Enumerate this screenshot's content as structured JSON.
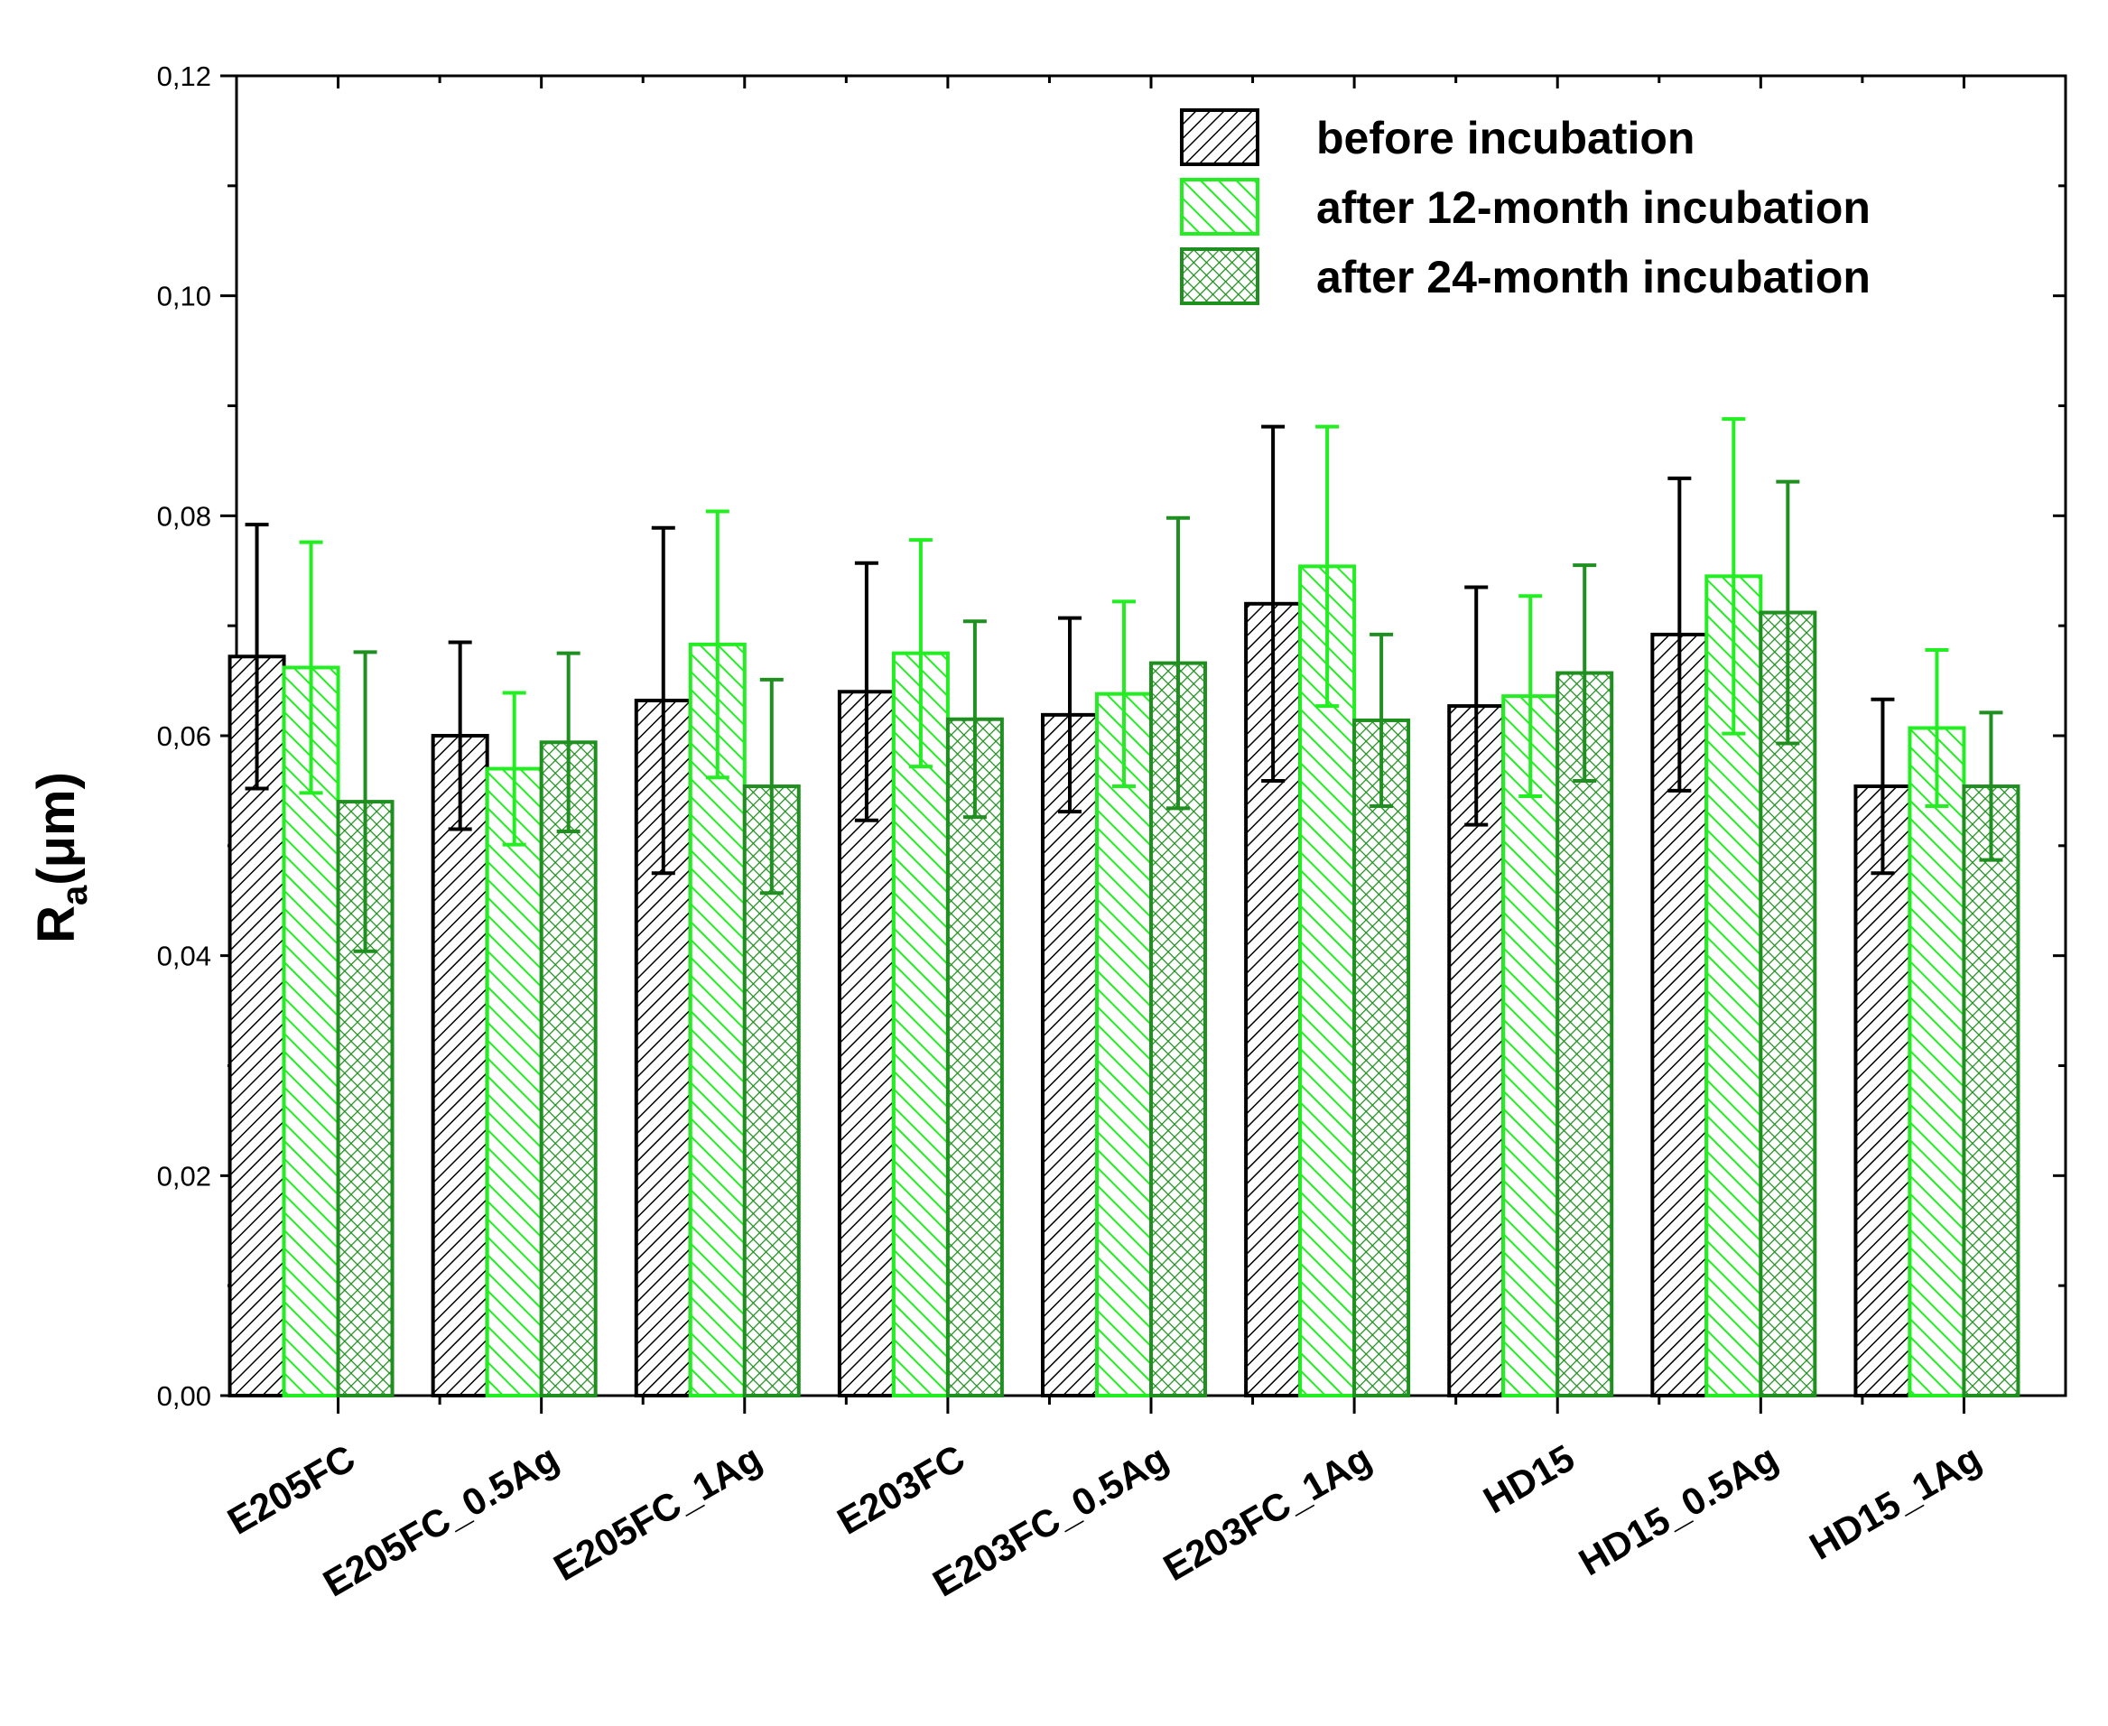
{
  "chart_data": {
    "type": "bar",
    "title": "",
    "xlabel": "",
    "ylabel": "Ra(μm)",
    "ylabel_parts": {
      "main": "R",
      "sub": "a",
      "unit": "(μm)"
    },
    "ylim": [
      0,
      0.12
    ],
    "yticks": [
      "0,00",
      "0,02",
      "0,04",
      "0,06",
      "0,08",
      "0,10",
      "0,12"
    ],
    "ytick_values": [
      0,
      0.02,
      0.04,
      0.06,
      0.08,
      0.1,
      0.12
    ],
    "categories": [
      "E205FC",
      "E205FC_0.5Ag",
      "E205FC_1Ag",
      "E203FC",
      "E203FC_0.5Ag",
      "E203FC_1Ag",
      "HD15",
      "HD15_0.5Ag",
      "HD15_1Ag"
    ],
    "legend_position": "top-right",
    "series": [
      {
        "name": "before incubation",
        "color": "#000000",
        "pattern": "diag-dense",
        "values": [
          0.0672,
          0.06,
          0.0632,
          0.064,
          0.0619,
          0.072,
          0.0627,
          0.0692,
          0.0554
        ],
        "errors": [
          0.012,
          0.0085,
          0.0157,
          0.0117,
          0.0088,
          0.0161,
          0.0108,
          0.0142,
          0.0079
        ]
      },
      {
        "name": "after 12-month incubation",
        "color": "#22ee22",
        "pattern": "diag-sparse",
        "values": [
          0.0662,
          0.057,
          0.0683,
          0.0675,
          0.0638,
          0.0754,
          0.0636,
          0.0745,
          0.0607
        ],
        "errors": [
          0.0114,
          0.0069,
          0.0121,
          0.0103,
          0.0084,
          0.0127,
          0.0091,
          0.0143,
          0.0071
        ]
      },
      {
        "name": "after 24-month incubation",
        "color": "#1f8f1f",
        "pattern": "crosshatch",
        "values": [
          0.054,
          0.0594,
          0.0554,
          0.0615,
          0.0666,
          0.0614,
          0.0657,
          0.0712,
          0.0554
        ],
        "errors": [
          0.0136,
          0.0081,
          0.0097,
          0.0089,
          0.0132,
          0.0078,
          0.0098,
          0.0119,
          0.0067
        ]
      }
    ]
  }
}
